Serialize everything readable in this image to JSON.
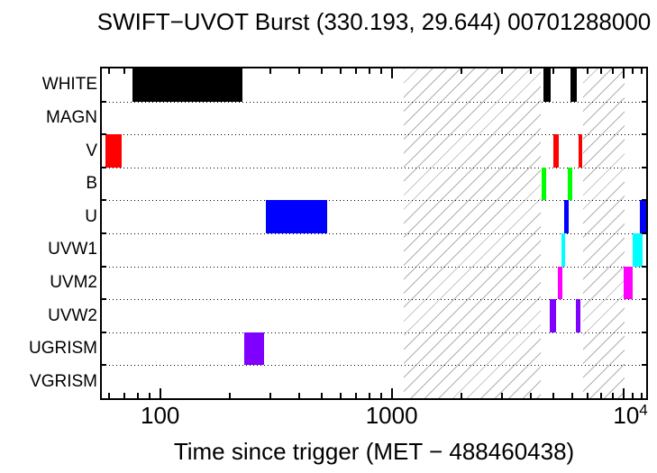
{
  "chart_data": {
    "type": "timeline",
    "title": "SWIFT−UVOT Burst (330.193, 29.644) 00701288000",
    "xlabel": "Time since trigger (MET − 488460438)",
    "xscale": "log",
    "xlim": [
      56,
      12560
    ],
    "grid": "dotted horizontal separators between filter rows",
    "legend_position": "none",
    "categories": [
      "WHITE",
      "MAGN",
      "V",
      "B",
      "U",
      "UVW1",
      "UVM2",
      "UVW2",
      "UGRISM",
      "VGRISM"
    ],
    "series": [
      {
        "name": "WHITE",
        "color": "#000000",
        "intervals": [
          [
            76,
            226
          ],
          [
            4540,
            4840
          ],
          [
            5910,
            6320
          ]
        ]
      },
      {
        "name": "MAGN",
        "color": "#000000",
        "intervals": []
      },
      {
        "name": "V",
        "color": "#ff0000",
        "intervals": [
          [
            58,
            68
          ],
          [
            4980,
            5250
          ],
          [
            6430,
            6620
          ]
        ]
      },
      {
        "name": "B",
        "color": "#00ff00",
        "intervals": [
          [
            4430,
            4640
          ],
          [
            5770,
            6040
          ]
        ]
      },
      {
        "name": "U",
        "color": "#0000ff",
        "intervals": [
          [
            285,
            525
          ],
          [
            5540,
            5830
          ],
          [
            11820,
            12540
          ]
        ]
      },
      {
        "name": "UVW1",
        "color": "#00ffff",
        "intervals": [
          [
            5400,
            5620
          ],
          [
            11010,
            12100
          ]
        ]
      },
      {
        "name": "UVM2",
        "color": "#ff00ff",
        "intervals": [
          [
            5210,
            5440
          ],
          [
            10030,
            11010
          ]
        ]
      },
      {
        "name": "UVW2",
        "color": "#7f00ff",
        "intervals": [
          [
            4830,
            5120
          ],
          [
            6240,
            6520
          ]
        ]
      },
      {
        "name": "UGRISM",
        "color": "#7f00ff",
        "intervals": [
          [
            230,
            280
          ]
        ]
      },
      {
        "name": "VGRISM",
        "color": "#7f00ff",
        "intervals": []
      }
    ],
    "hatched_windows": [
      [
        1130,
        4385
      ],
      [
        6680,
        10090
      ]
    ],
    "major_ticks": [
      {
        "value": 100,
        "label": "100",
        "sup": ""
      },
      {
        "value": 1000,
        "label": "1000",
        "sup": ""
      },
      {
        "value": 10000,
        "label": "10",
        "sup": "4"
      }
    ],
    "minor_ticks": [
      60,
      70,
      80,
      90,
      200,
      300,
      400,
      500,
      600,
      700,
      800,
      900,
      2000,
      3000,
      4000,
      5000,
      6000,
      7000,
      8000,
      9000,
      11000,
      12000
    ]
  }
}
